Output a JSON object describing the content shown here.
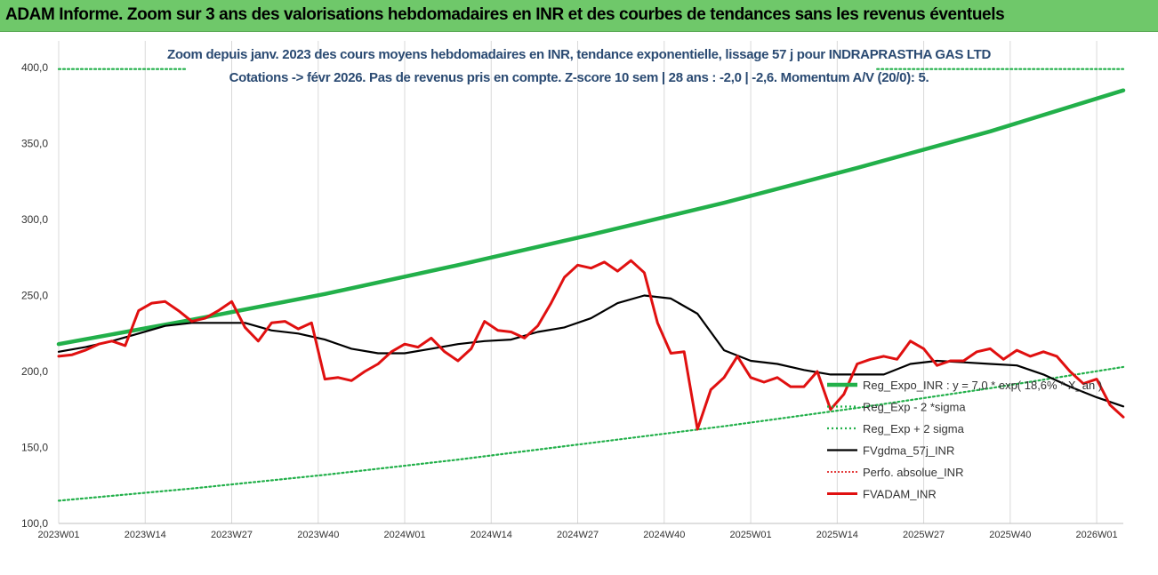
{
  "banner": {
    "title": "ADAM Informe. Zoom sur 3 ans des valorisations hebdomadaires en INR et des courbes de tendances sans les revenus éventuels"
  },
  "colors": {
    "banner_bg": "#6fc86a",
    "title_text": "#2a4a72",
    "trend": "#22b04a",
    "trend_band": "#22b04a",
    "smoothing": "#000000",
    "perf_absolute": "#e02020",
    "valuation": "#e01010",
    "grid": "#d9d9d9"
  },
  "chart_data": {
    "type": "line",
    "title_line1": "Zoom depuis janv. 2023 des cours moyens hebdomadaires en INR, tendance exponentielle, lissage 57 j pour INDRAPRASTHA GAS LTD",
    "title_line2": "Cotations -> févr 2026.  Pas de revenus pris en compte. Z-score 10 sem | 28 ans : -2,0 | -2,6. Momentum A/V (20/0): 5.",
    "xlabel": "",
    "ylabel": "",
    "ylim": [
      100,
      400
    ],
    "yticks": [
      "100,0",
      "150,0",
      "200,0",
      "250,0",
      "300,0",
      "350,0",
      "400,0"
    ],
    "ytick_values": [
      100,
      150,
      200,
      250,
      300,
      350,
      400
    ],
    "xlim": [
      0,
      160
    ],
    "xticks": [
      "2023W01",
      "2023W14",
      "2023W27",
      "2023W40",
      "2024W01",
      "2024W14",
      "2024W27",
      "2024W40",
      "2025W01",
      "2025W14",
      "2025W27",
      "2025W40",
      "2026W01"
    ],
    "xtick_positions": [
      0,
      13,
      26,
      39,
      52,
      65,
      78,
      91,
      104,
      117,
      130,
      143,
      156
    ],
    "grid": "vertical",
    "legend_position": "bottom-right",
    "series": [
      {
        "name": "Reg_Expo_INR : y = 7,0 * exp( 18,6% * X_an )",
        "style": "solid-thick",
        "x": [
          0,
          20,
          40,
          60,
          80,
          100,
          120,
          140,
          160
        ],
        "y": [
          218,
          234,
          251,
          270,
          290,
          311,
          334,
          358,
          385
        ]
      },
      {
        "name": "Reg_Exp - 2 *sigma",
        "style": "dotted",
        "x": [
          0,
          20,
          40,
          60,
          80,
          100,
          120,
          140,
          160
        ],
        "y": [
          115,
          123,
          132,
          142,
          153,
          164,
          176,
          189,
          203
        ]
      },
      {
        "name": "Reg_Exp + 2 sigma",
        "style": "dotted",
        "x": [
          0,
          20,
          40,
          60,
          80,
          100,
          120,
          140,
          160
        ],
        "y": [
          399,
          399,
          399,
          399,
          399,
          399,
          399,
          399,
          399
        ]
      },
      {
        "name": "FVgdma_57j_INR",
        "style": "solid",
        "x": [
          0,
          4,
          8,
          12,
          16,
          20,
          24,
          28,
          32,
          36,
          40,
          44,
          48,
          52,
          56,
          60,
          64,
          68,
          72,
          76,
          80,
          84,
          88,
          92,
          96,
          100,
          104,
          108,
          112,
          116,
          120,
          124,
          128,
          132,
          136,
          140,
          144,
          148,
          152,
          156,
          160
        ],
        "y": [
          213,
          216,
          220,
          225,
          230,
          232,
          232,
          232,
          227,
          225,
          221,
          215,
          212,
          212,
          215,
          218,
          220,
          221,
          226,
          229,
          235,
          245,
          250,
          248,
          238,
          214,
          207,
          205,
          201,
          198,
          198,
          198,
          205,
          207,
          206,
          205,
          204,
          198,
          190,
          183,
          177
        ]
      },
      {
        "name": "Perfo. absolue_INR",
        "style": "dotted-red",
        "x": [],
        "y": []
      },
      {
        "name": "FVADAM_INR",
        "style": "solid-red",
        "x": [
          0,
          2,
          4,
          6,
          8,
          10,
          12,
          14,
          16,
          18,
          20,
          22,
          24,
          26,
          28,
          30,
          32,
          34,
          36,
          38,
          40,
          42,
          44,
          46,
          48,
          50,
          52,
          54,
          56,
          58,
          60,
          62,
          64,
          66,
          68,
          70,
          72,
          74,
          76,
          78,
          80,
          82,
          84,
          86,
          88,
          90,
          92,
          94,
          96,
          98,
          100,
          102,
          104,
          106,
          108,
          110,
          112,
          114,
          116,
          118,
          120,
          122,
          124,
          126,
          128,
          130,
          132,
          134,
          136,
          138,
          140,
          142,
          144,
          146,
          148,
          150,
          152,
          154,
          156,
          158,
          160
        ],
        "y": [
          210,
          211,
          214,
          218,
          220,
          217,
          240,
          245,
          246,
          240,
          233,
          235,
          240,
          246,
          229,
          220,
          232,
          233,
          228,
          232,
          195,
          196,
          194,
          200,
          205,
          213,
          218,
          216,
          222,
          213,
          207,
          215,
          233,
          227,
          226,
          222,
          230,
          245,
          262,
          270,
          268,
          272,
          266,
          273,
          265,
          232,
          212,
          213,
          162,
          188,
          196,
          210,
          196,
          193,
          196,
          190,
          190,
          200,
          175,
          185,
          205,
          208,
          210,
          208,
          220,
          215,
          204,
          207,
          207,
          213,
          215,
          208,
          214,
          210,
          213,
          210,
          200,
          192,
          195,
          178,
          170
        ]
      }
    ]
  }
}
